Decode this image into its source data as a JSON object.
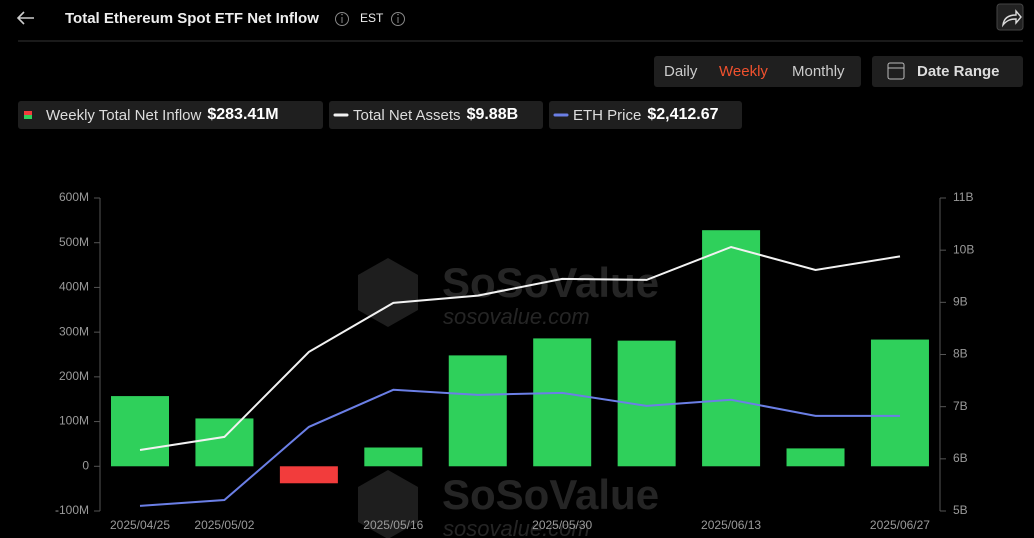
{
  "header": {
    "title": "Total Ethereum Spot ETF Net Inflow",
    "timezone": "EST"
  },
  "controls": {
    "periods": [
      "Daily",
      "Weekly",
      "Monthly"
    ],
    "selected_index": 1,
    "date_range": "Date Range"
  },
  "legend_values": [
    "$283.41M",
    "$9.88B",
    "$2,412.67"
  ],
  "watermark": {
    "brand": "SoSoValue",
    "url": "sosovalue.com"
  },
  "chart_data": {
    "type": "bar",
    "categories": [
      "2025/04/25",
      "2025/05/02",
      null,
      "2025/05/16",
      null,
      "2025/05/30",
      null,
      "2025/06/13",
      null,
      "2025/06/27"
    ],
    "series": [
      {
        "name": "Weekly Total Net Inflow",
        "type": "bar",
        "color": "#2fd05b",
        "negative_color": "#f23c3c",
        "values": [
          157,
          107,
          -38,
          42,
          248,
          286,
          281,
          528,
          40,
          283.41
        ]
      },
      {
        "name": "Total Net Assets",
        "type": "line",
        "axis": "y2",
        "color": "#f2f2f2",
        "values": [
          6.17,
          6.42,
          8.05,
          8.99,
          9.13,
          9.45,
          9.43,
          10.06,
          9.62,
          9.88
        ]
      },
      {
        "name": "ETH Price",
        "type": "line",
        "axis": "y3",
        "color": "#6b7fe6",
        "values": [
          1790,
          1831,
          2337,
          2593,
          2558,
          2572,
          2482,
          2524,
          2413,
          2412.67
        ]
      }
    ],
    "ylim": [
      -100,
      600
    ],
    "yticks": [
      {
        "value": -100,
        "label": "-100M"
      },
      0,
      {
        "value": 100,
        "label": "100M"
      },
      {
        "value": 200,
        "label": "200M"
      },
      {
        "value": 300,
        "label": "300M"
      },
      {
        "value": 400,
        "label": "400M"
      },
      {
        "value": 500,
        "label": "500M"
      },
      {
        "value": 600,
        "label": "600M"
      }
    ],
    "y2lim": [
      5,
      11
    ],
    "y2ticks": [
      {
        "value": 5,
        "label": "5B"
      },
      {
        "value": 6,
        "label": "6B"
      },
      {
        "value": 7,
        "label": "7B"
      },
      {
        "value": 8,
        "label": "8B"
      },
      {
        "value": 9,
        "label": "9B"
      },
      {
        "value": 10,
        "label": "10B"
      },
      {
        "value": 11,
        "label": "11B"
      }
    ],
    "y3lim": [
      1755,
      3920
    ]
  }
}
